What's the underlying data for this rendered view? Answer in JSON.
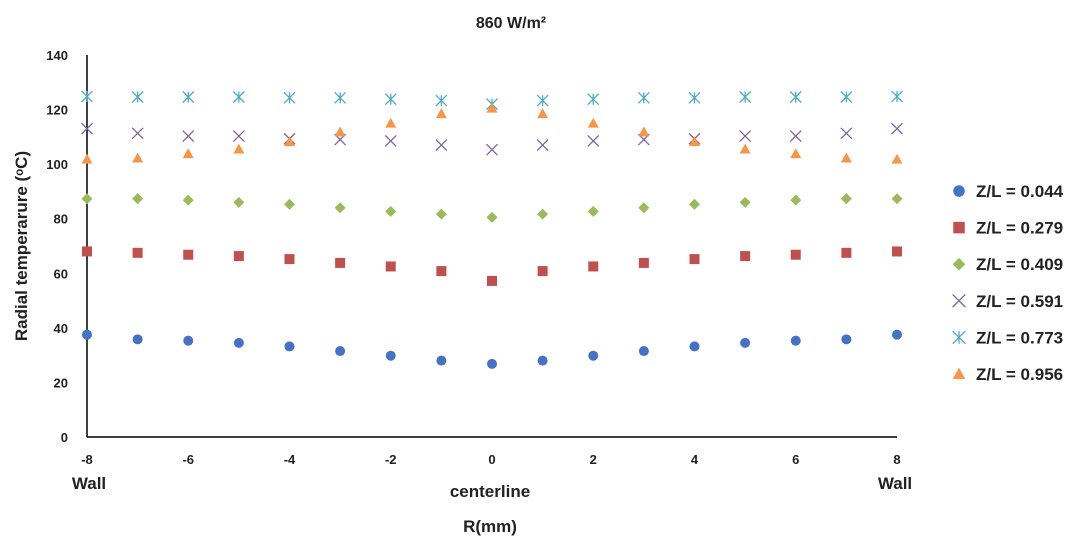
{
  "chart_data": {
    "type": "scatter",
    "title": "860 W/m²",
    "xlabel": "R(mm)",
    "ylabel": "Radial temperarure (ᵒC)",
    "xlim": [
      -8,
      8
    ],
    "ylim": [
      0,
      140
    ],
    "x_ticks": [
      -8,
      -6,
      -4,
      -2,
      0,
      2,
      4,
      6,
      8
    ],
    "y_ticks": [
      0,
      20,
      40,
      60,
      80,
      100,
      120,
      140
    ],
    "grid": false,
    "legend_position": "right",
    "annotations": {
      "left_wall": "Wall",
      "center": "centerline",
      "right_wall": "Wall"
    },
    "x": [
      -8,
      -7,
      -6,
      -5,
      -4,
      -3,
      -2,
      -1,
      0,
      1,
      2,
      3,
      4,
      5,
      6,
      7,
      8
    ],
    "series": [
      {
        "name": "Z/L = 0.044",
        "marker": "circle",
        "color": "#4472C4",
        "values": [
          37.5,
          35.8,
          35.3,
          34.5,
          33.2,
          31.5,
          29.8,
          28.0,
          26.8,
          28.0,
          29.8,
          31.5,
          33.2,
          34.5,
          35.3,
          35.8,
          37.5
        ]
      },
      {
        "name": "Z/L = 0.279",
        "marker": "square",
        "color": "#C0504D",
        "values": [
          68.0,
          67.5,
          66.8,
          66.3,
          65.2,
          63.8,
          62.5,
          60.8,
          57.2,
          60.8,
          62.5,
          63.8,
          65.2,
          66.3,
          66.8,
          67.5,
          68.0
        ]
      },
      {
        "name": "Z/L = 0.409",
        "marker": "diamond",
        "color": "#9BBB59",
        "values": [
          87.3,
          87.3,
          86.8,
          86.0,
          85.3,
          84.0,
          82.7,
          81.7,
          80.5,
          81.7,
          82.7,
          84.0,
          85.3,
          86.0,
          86.8,
          87.3,
          87.3
        ]
      },
      {
        "name": "Z/L = 0.591",
        "marker": "x",
        "color": "#8064A2",
        "values": [
          113.0,
          111.3,
          110.3,
          110.3,
          109.3,
          109.0,
          108.5,
          107.0,
          105.3,
          107.0,
          108.5,
          109.0,
          109.3,
          110.3,
          110.3,
          111.3,
          113.0
        ]
      },
      {
        "name": "Z/L = 0.773",
        "marker": "star",
        "color": "#4BACC6",
        "values": [
          124.8,
          124.6,
          124.6,
          124.6,
          124.3,
          124.3,
          123.8,
          123.3,
          122.0,
          123.3,
          123.8,
          124.3,
          124.3,
          124.6,
          124.6,
          124.6,
          124.8
        ]
      },
      {
        "name": "Z/L = 0.956",
        "marker": "triangle",
        "color": "#F79646",
        "values": [
          101.8,
          102.2,
          103.8,
          105.5,
          108.2,
          111.8,
          115.0,
          118.5,
          120.5,
          118.5,
          115.0,
          111.8,
          108.2,
          105.5,
          103.8,
          102.2,
          101.8
        ]
      }
    ]
  }
}
